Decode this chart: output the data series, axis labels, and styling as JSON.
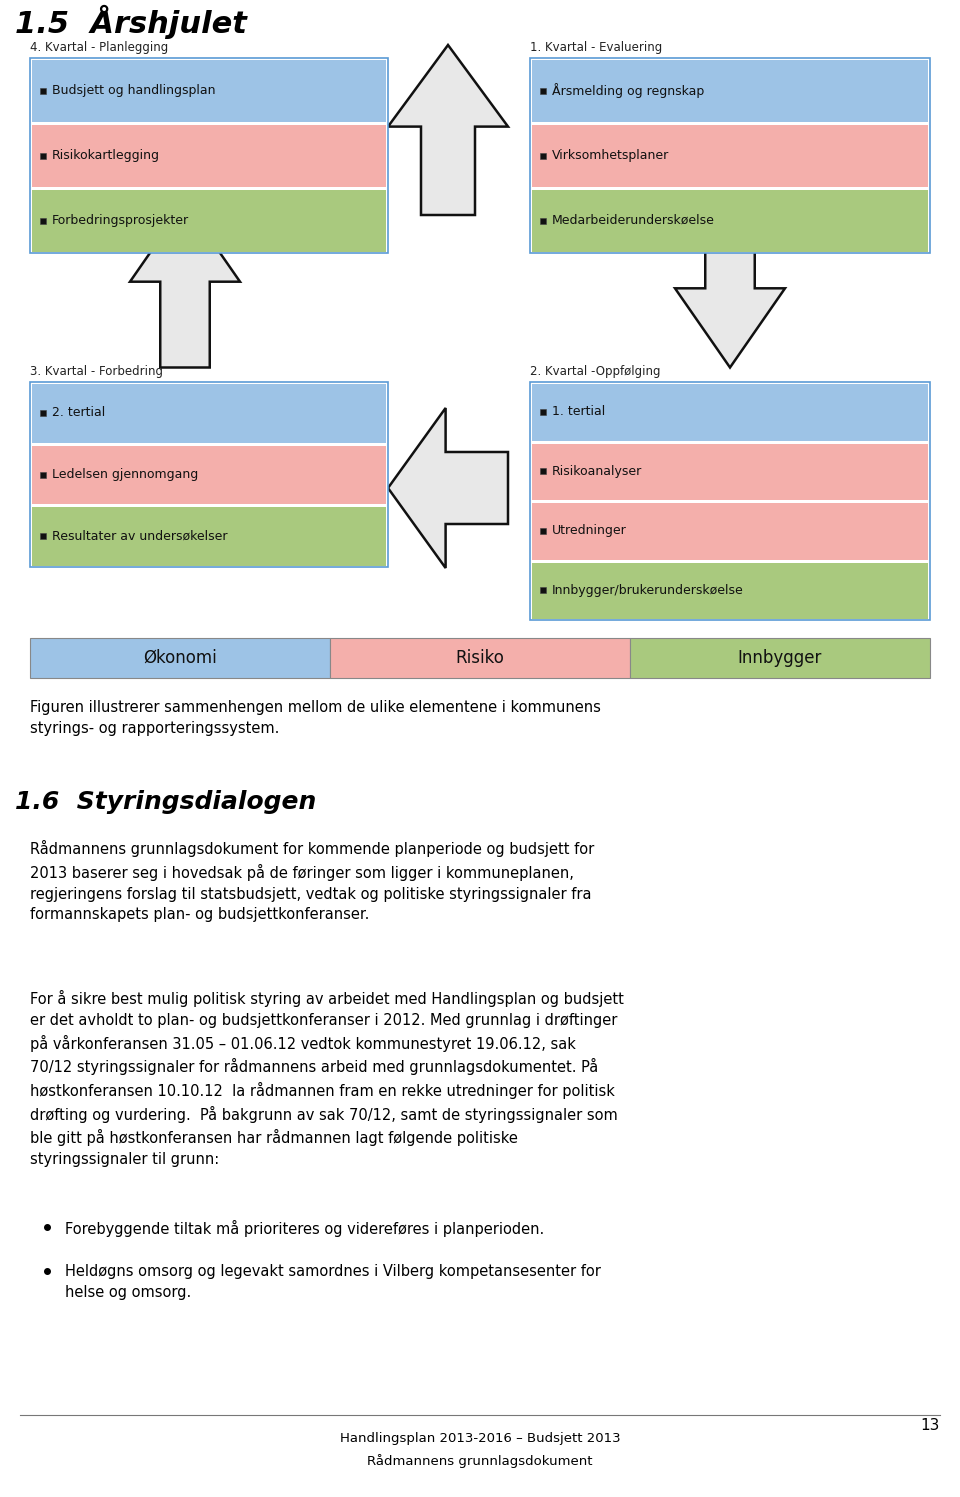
{
  "title": "1.5  Årshjulet",
  "section2_title": "1.6  Styringsdialogen",
  "kvartal_labels": [
    "4. Kvartal - Planlegging",
    "1. Kvartal - Evaluering",
    "3. Kvartal - Forbedring",
    "2. Kvartal -Oppfølging"
  ],
  "box_top_left": {
    "items": [
      {
        "text": "Budsjett og handlingsplan",
        "color": "#9dc3e6"
      },
      {
        "text": "Risikokartlegging",
        "color": "#f4afab"
      },
      {
        "text": "Forbedringsprosjekter",
        "color": "#a9c97e"
      }
    ]
  },
  "box_top_right": {
    "items": [
      {
        "text": "Årsmelding og regnskap",
        "color": "#9dc3e6"
      },
      {
        "text": "Virksomhetsplaner",
        "color": "#f4afab"
      },
      {
        "text": "Medarbeiderunderskøelse",
        "color": "#a9c97e"
      }
    ]
  },
  "box_bottom_left": {
    "items": [
      {
        "text": "2. tertial",
        "color": "#9dc3e6"
      },
      {
        "text": "Ledelsen gjennomgang",
        "color": "#f4afab"
      },
      {
        "text": "Resultater av undersøkelser",
        "color": "#a9c97e"
      }
    ]
  },
  "box_bottom_right": {
    "items": [
      {
        "text": "1. tertial",
        "color": "#9dc3e6"
      },
      {
        "text": "Risikoanalyser",
        "color": "#f4afab"
      },
      {
        "text": "Utredninger",
        "color": "#f4afab"
      },
      {
        "text": "Innbygger/brukerunderskøelse",
        "color": "#a9c97e"
      }
    ]
  },
  "legend_items": [
    {
      "text": "Økonomi",
      "color": "#9dc3e6"
    },
    {
      "text": "Risiko",
      "color": "#f4afab"
    },
    {
      "text": "Innbygger",
      "color": "#a9c97e"
    }
  ],
  "caption": "Figuren illustrerer sammenhengen mellom de ulike elementene i kommunens\nstyrings- og rapporteringssystem.",
  "body_para1": "Rådmannens grunnlagsdokument for kommende planperiode og budsjett for\n2013 baserer seg i hovedsak på de føringer som ligger i kommuneplanen,\nregjeringens forslag til statsbudsjett, vedtak og politiske styringssignaler fra\nformannskapets plan- og budsjettkonferanser.",
  "body_para2": "For å sikre best mulig politisk styring av arbeidet med Handlingsplan og budsjett\ner det avholdt to plan- og budsjettkonferanser i 2012. Med grunnlag i drøftinger\npå vårkonferansen 31.05 – 01.06.12 vedtok kommunestyret 19.06.12, sak\n70/12 styringssignaler for rådmannens arbeid med grunnlagsdokumentet. På\nhøstkonferansen 10.10.12  la rådmannen fram en rekke utredninger for politisk\ndrøfting og vurdering.  På bakgrunn av sak 70/12, samt de styringssignaler som\nble gitt på høstkonferansen har rådmannen lagt følgende politiske\nstyringssignaler til grunn:",
  "bullet_points": [
    "Forebyggende tiltak må prioriteres og videreføres i planperioden.",
    "Heldøgns omsorg og legevakt samordnes i Vilberg kompetansesenter for\nhelse og omsorg."
  ],
  "footer_line1": "Handlingsplan 2013-2016 – Budsjett 2013",
  "footer_line2": "Rådmannens grunnlagsdokument",
  "page_number": "13",
  "bg_color": "#ffffff",
  "box_border_color": "#5b9bd5",
  "text_color": "#000000"
}
